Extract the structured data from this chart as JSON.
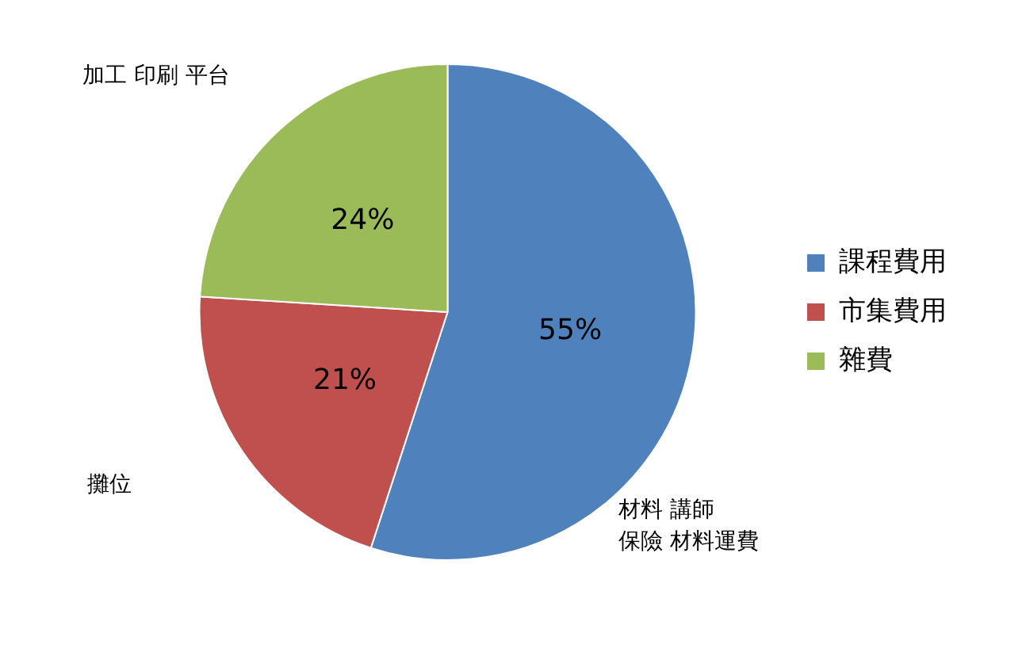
{
  "chart_data": {
    "type": "pie",
    "categories": [
      "課程費用",
      "市集費用",
      "雜費"
    ],
    "values": [
      55,
      21,
      24
    ],
    "colors": [
      "#4f81bd",
      "#c0504d",
      "#9bbb59"
    ],
    "value_labels": [
      "55%",
      "21%",
      "24%"
    ],
    "legend": "right",
    "annotations": [
      "加工 印刷 平台",
      "攤位",
      "材料 講師",
      "保險 材料運費"
    ]
  }
}
